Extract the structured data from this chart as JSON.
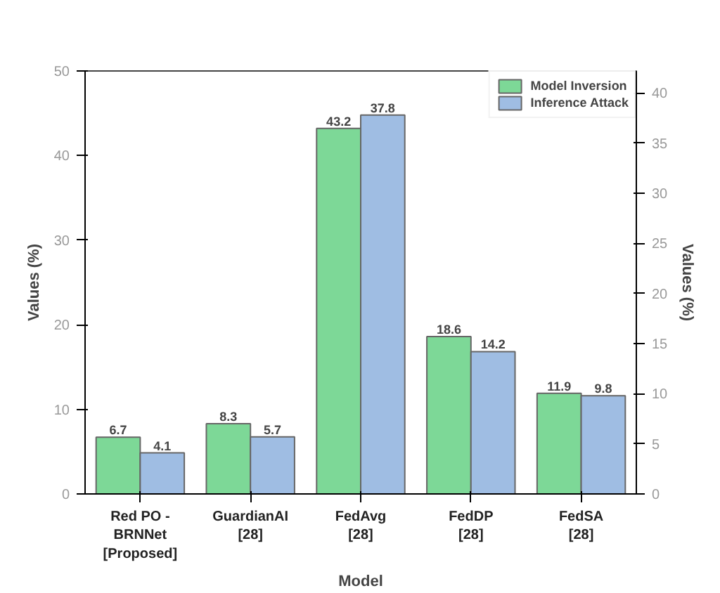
{
  "chart_data": {
    "type": "bar",
    "xlabel": "Model",
    "ylabel": "Values (%)",
    "y2label": "Values (%)",
    "categories": [
      "Red PO - BRNNet [Proposed]",
      "GuardianAI [28]",
      "FedAvg [28]",
      "FedDP [28]",
      "FedSA [28]"
    ],
    "series": [
      {
        "name": "Model Inversion",
        "color": "#7dd897",
        "values": [
          6.7,
          8.3,
          43.2,
          18.6,
          11.9
        ]
      },
      {
        "name": "Inference Attack",
        "color": "#9fbde3",
        "axis": "y2",
        "values": [
          4.1,
          5.7,
          37.8,
          14.2,
          9.8
        ]
      }
    ],
    "ylim": [
      0,
      50
    ],
    "yticks": [
      0,
      10,
      20,
      30,
      40,
      50
    ],
    "y2lim": [
      0,
      42.2
    ],
    "y2ticks": [
      0,
      5,
      10,
      15,
      20,
      25,
      30,
      35,
      40
    ],
    "data_labels": true,
    "legend": "top right"
  }
}
